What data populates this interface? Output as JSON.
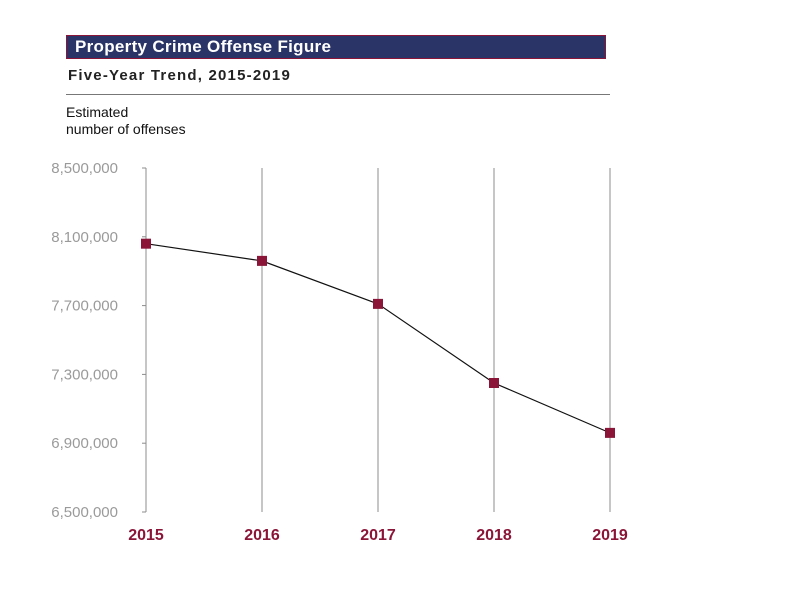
{
  "header": {
    "title": "Property Crime Offense Figure",
    "subtitle": "Five-Year Trend, 2015-2019"
  },
  "chart_data": {
    "type": "line",
    "ylabel": "Estimated\nnumber of offenses",
    "categories": [
      "2015",
      "2016",
      "2017",
      "2018",
      "2019"
    ],
    "series": [
      {
        "values": [
          8060000,
          7960000,
          7710000,
          7250000,
          6960000
        ]
      }
    ],
    "ylim": [
      6500000,
      8500000
    ],
    "yticks": [
      6500000,
      6900000,
      7300000,
      7700000,
      8100000,
      8500000
    ],
    "ytick_labels": [
      "6,500,000",
      "6,900,000",
      "7,300,000",
      "7,700,000",
      "8,100,000",
      "8,500,000"
    ],
    "grid": "vertical",
    "colors": {
      "marker": "#8a1538",
      "line": "#111111",
      "category_text": "#8a1538",
      "title_bg": "#2b3467"
    }
  }
}
